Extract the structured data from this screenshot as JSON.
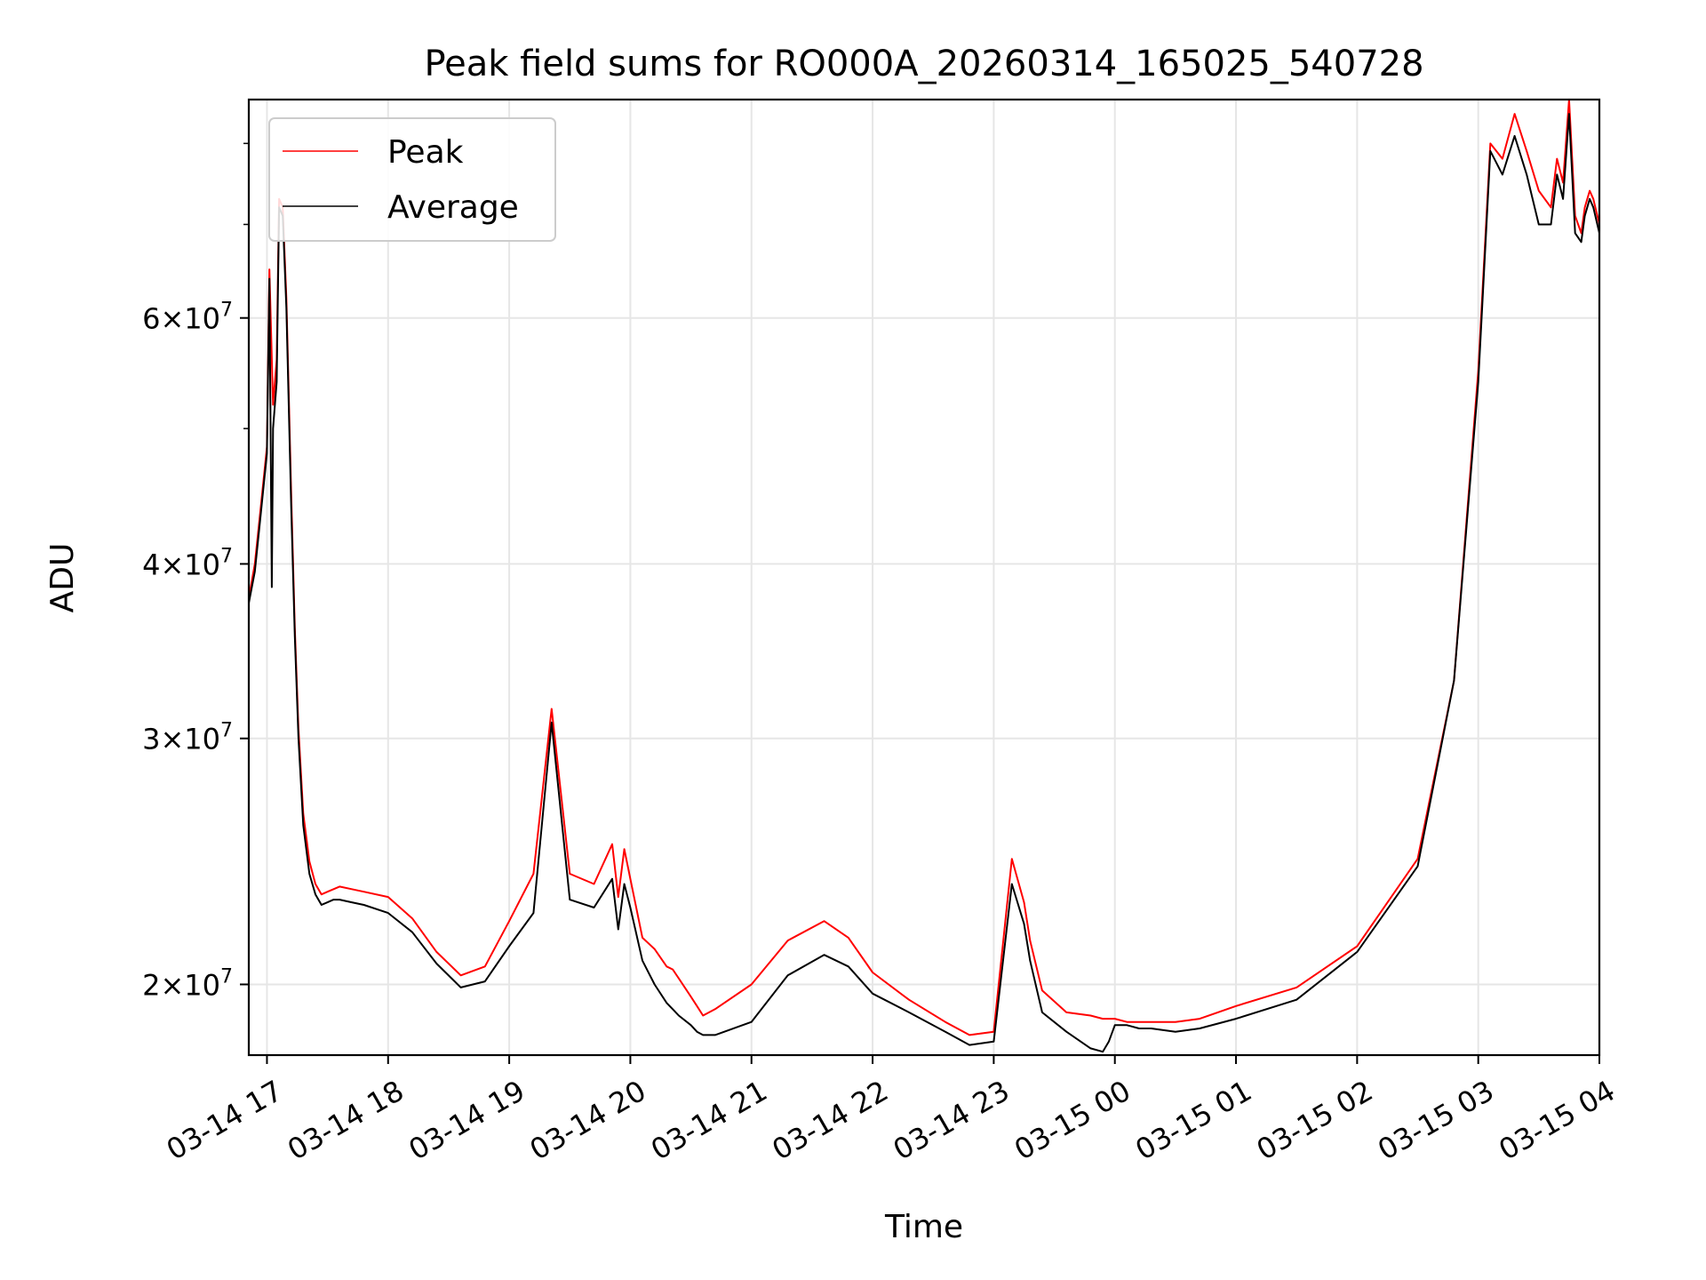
{
  "chart_data": {
    "type": "line",
    "title": "Peak field sums for RO000A_20260314_165025_540728",
    "xlabel": "Time",
    "ylabel": "ADU",
    "y_scale": "log",
    "ylim": [
      17800000,
      86000000
    ],
    "xlim_hours": [
      -0.15,
      11.0
    ],
    "grid": true,
    "legend_position": "top-left",
    "x_ticks": [
      {
        "hour": 0,
        "label": "03-14 17"
      },
      {
        "hour": 1,
        "label": "03-14 18"
      },
      {
        "hour": 2,
        "label": "03-14 19"
      },
      {
        "hour": 3,
        "label": "03-14 20"
      },
      {
        "hour": 4,
        "label": "03-14 21"
      },
      {
        "hour": 5,
        "label": "03-14 22"
      },
      {
        "hour": 6,
        "label": "03-14 23"
      },
      {
        "hour": 7,
        "label": "03-15 00"
      },
      {
        "hour": 8,
        "label": "03-15 01"
      },
      {
        "hour": 9,
        "label": "03-15 02"
      },
      {
        "hour": 10,
        "label": "03-15 03"
      },
      {
        "hour": 11,
        "label": "03-15 04"
      }
    ],
    "y_ticks": [
      {
        "value": 20000000,
        "mant": "2",
        "exp": "7"
      },
      {
        "value": 30000000,
        "mant": "3",
        "exp": "7"
      },
      {
        "value": 40000000,
        "mant": "4",
        "exp": "7"
      },
      {
        "value": 60000000,
        "mant": "6",
        "exp": "7"
      }
    ],
    "y_minor_ticks": [
      50000000,
      70000000,
      80000000
    ],
    "series": [
      {
        "name": "Peak",
        "color": "#ff0000",
        "x_hours": [
          -0.15,
          -0.1,
          -0.05,
          0.0,
          0.02,
          0.05,
          0.08,
          0.1,
          0.13,
          0.16,
          0.2,
          0.23,
          0.26,
          0.3,
          0.35,
          0.4,
          0.45,
          0.5,
          0.55,
          0.6,
          0.7,
          0.8,
          1.0,
          1.2,
          1.4,
          1.6,
          1.8,
          2.0,
          2.2,
          2.35,
          2.5,
          2.7,
          2.85,
          2.9,
          2.95,
          3.0,
          3.1,
          3.2,
          3.3,
          3.35,
          3.4,
          3.5,
          3.55,
          3.6,
          3.7,
          4.0,
          4.3,
          4.6,
          4.8,
          5.0,
          5.3,
          5.6,
          5.8,
          6.0,
          6.15,
          6.25,
          6.3,
          6.4,
          6.6,
          6.8,
          6.9,
          6.95,
          7.0,
          7.1,
          7.2,
          7.3,
          7.5,
          7.7,
          8.0,
          8.5,
          9.0,
          9.5,
          9.8,
          10.0,
          10.1,
          10.2,
          10.3,
          10.4,
          10.5,
          10.6,
          10.65,
          10.7,
          10.75,
          10.8,
          10.85,
          10.88,
          10.92,
          10.95,
          11.0
        ],
        "values": [
          37800000,
          40000000,
          44000000,
          48500000,
          65000000,
          52000000,
          56000000,
          73000000,
          72000000,
          62000000,
          45000000,
          36000000,
          30500000,
          26500000,
          24500000,
          23600000,
          23200000,
          23300000,
          23400000,
          23500000,
          23400000,
          23300000,
          23100000,
          22300000,
          21100000,
          20300000,
          20600000,
          22200000,
          24000000,
          31500000,
          24000000,
          23600000,
          25200000,
          23100000,
          25000000,
          23800000,
          21600000,
          21200000,
          20600000,
          20500000,
          20200000,
          19600000,
          19300000,
          19000000,
          19200000,
          20000000,
          21500000,
          22200000,
          21600000,
          20400000,
          19500000,
          18800000,
          18400000,
          18500000,
          24600000,
          22900000,
          21500000,
          19800000,
          19100000,
          19000000,
          18900000,
          18900000,
          18900000,
          18800000,
          18800000,
          18800000,
          18800000,
          18900000,
          19300000,
          19900000,
          21300000,
          24600000,
          33000000,
          55000000,
          80000000,
          78000000,
          84000000,
          79000000,
          74000000,
          72000000,
          78000000,
          75000000,
          86000000,
          71000000,
          69000000,
          72000000,
          74000000,
          73000000,
          70000000
        ]
      },
      {
        "name": "Average",
        "color": "#000000",
        "x_hours": [
          -0.15,
          -0.1,
          -0.05,
          0.0,
          0.02,
          0.04,
          0.05,
          0.08,
          0.1,
          0.13,
          0.16,
          0.2,
          0.23,
          0.26,
          0.3,
          0.35,
          0.4,
          0.45,
          0.5,
          0.55,
          0.6,
          0.7,
          0.8,
          1.0,
          1.2,
          1.4,
          1.6,
          1.8,
          2.0,
          2.2,
          2.35,
          2.5,
          2.7,
          2.85,
          2.9,
          2.95,
          3.0,
          3.1,
          3.2,
          3.3,
          3.35,
          3.4,
          3.5,
          3.55,
          3.6,
          3.7,
          4.0,
          4.3,
          4.6,
          4.8,
          5.0,
          5.3,
          5.6,
          5.8,
          6.0,
          6.15,
          6.25,
          6.3,
          6.4,
          6.6,
          6.8,
          6.9,
          6.95,
          7.0,
          7.1,
          7.2,
          7.3,
          7.5,
          7.7,
          8.0,
          8.5,
          9.0,
          9.5,
          9.8,
          10.0,
          10.1,
          10.2,
          10.3,
          10.4,
          10.5,
          10.6,
          10.65,
          10.7,
          10.75,
          10.8,
          10.85,
          10.88,
          10.92,
          10.95,
          11.0
        ],
        "values": [
          37500000,
          39500000,
          43500000,
          48000000,
          64000000,
          38500000,
          50000000,
          54000000,
          72000000,
          71000000,
          61000000,
          44000000,
          35500000,
          30000000,
          26000000,
          24000000,
          23200000,
          22800000,
          22900000,
          23000000,
          23000000,
          22900000,
          22800000,
          22500000,
          21800000,
          20700000,
          19900000,
          20100000,
          21300000,
          22500000,
          30800000,
          23000000,
          22700000,
          23800000,
          21900000,
          23600000,
          22700000,
          20800000,
          20000000,
          19400000,
          19200000,
          19000000,
          18700000,
          18500000,
          18400000,
          18400000,
          18800000,
          20300000,
          21000000,
          20600000,
          19700000,
          19100000,
          18500000,
          18100000,
          18200000,
          23600000,
          22100000,
          20800000,
          19100000,
          18500000,
          18000000,
          17900000,
          18200000,
          18700000,
          18700000,
          18600000,
          18600000,
          18500000,
          18600000,
          18900000,
          19500000,
          21100000,
          24300000,
          33000000,
          54000000,
          79000000,
          76000000,
          81000000,
          76000000,
          70000000,
          70000000,
          76000000,
          73000000,
          84000000,
          69000000,
          68000000,
          71000000,
          73000000,
          72000000,
          69000000
        ]
      }
    ]
  }
}
